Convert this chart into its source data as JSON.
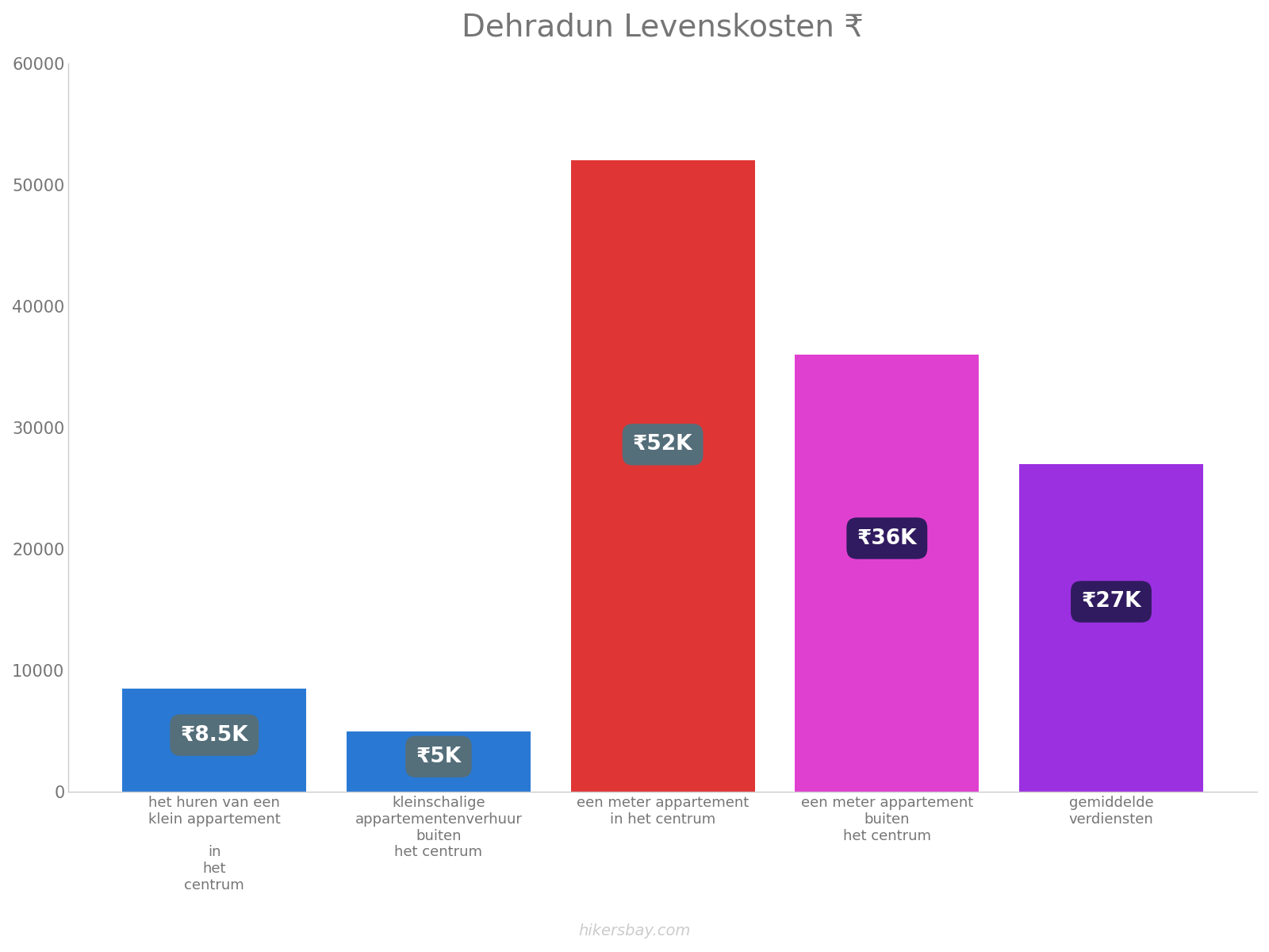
{
  "title": "Dehradun Levenskosten ₹",
  "categories": [
    "het huren van een\nklein appartement\n\nin\nhet\ncentrum",
    "kleinschalige\nappartementenverhuur\nbuiten\nhet centrum",
    "een meter appartement\nin het centrum",
    "een meter appartement\nbuiten\nhet centrum",
    "gemiddelde\nverdiensten"
  ],
  "values": [
    8500,
    5000,
    52000,
    36000,
    27000
  ],
  "bar_colors": [
    "#2979d4",
    "#2979d4",
    "#e03535",
    "#e040d0",
    "#9b30e0"
  ],
  "label_texts": [
    "₹8.5K",
    "₹5K",
    "₹52K",
    "₹36K",
    "₹27K"
  ],
  "label_bg_colors": [
    "#546e7a",
    "#546e7a",
    "#546e7a",
    "#311b60",
    "#311b60"
  ],
  "label_text_color": "#ffffff",
  "ylim": [
    0,
    60000
  ],
  "yticks": [
    0,
    10000,
    20000,
    30000,
    40000,
    50000,
    60000
  ],
  "background_color": "#ffffff",
  "title_color": "#757575",
  "tick_color": "#757575",
  "spine_color": "#cccccc",
  "watermark": "hikersbay.com",
  "watermark_color": "#cccccc",
  "bar_width": 0.82
}
